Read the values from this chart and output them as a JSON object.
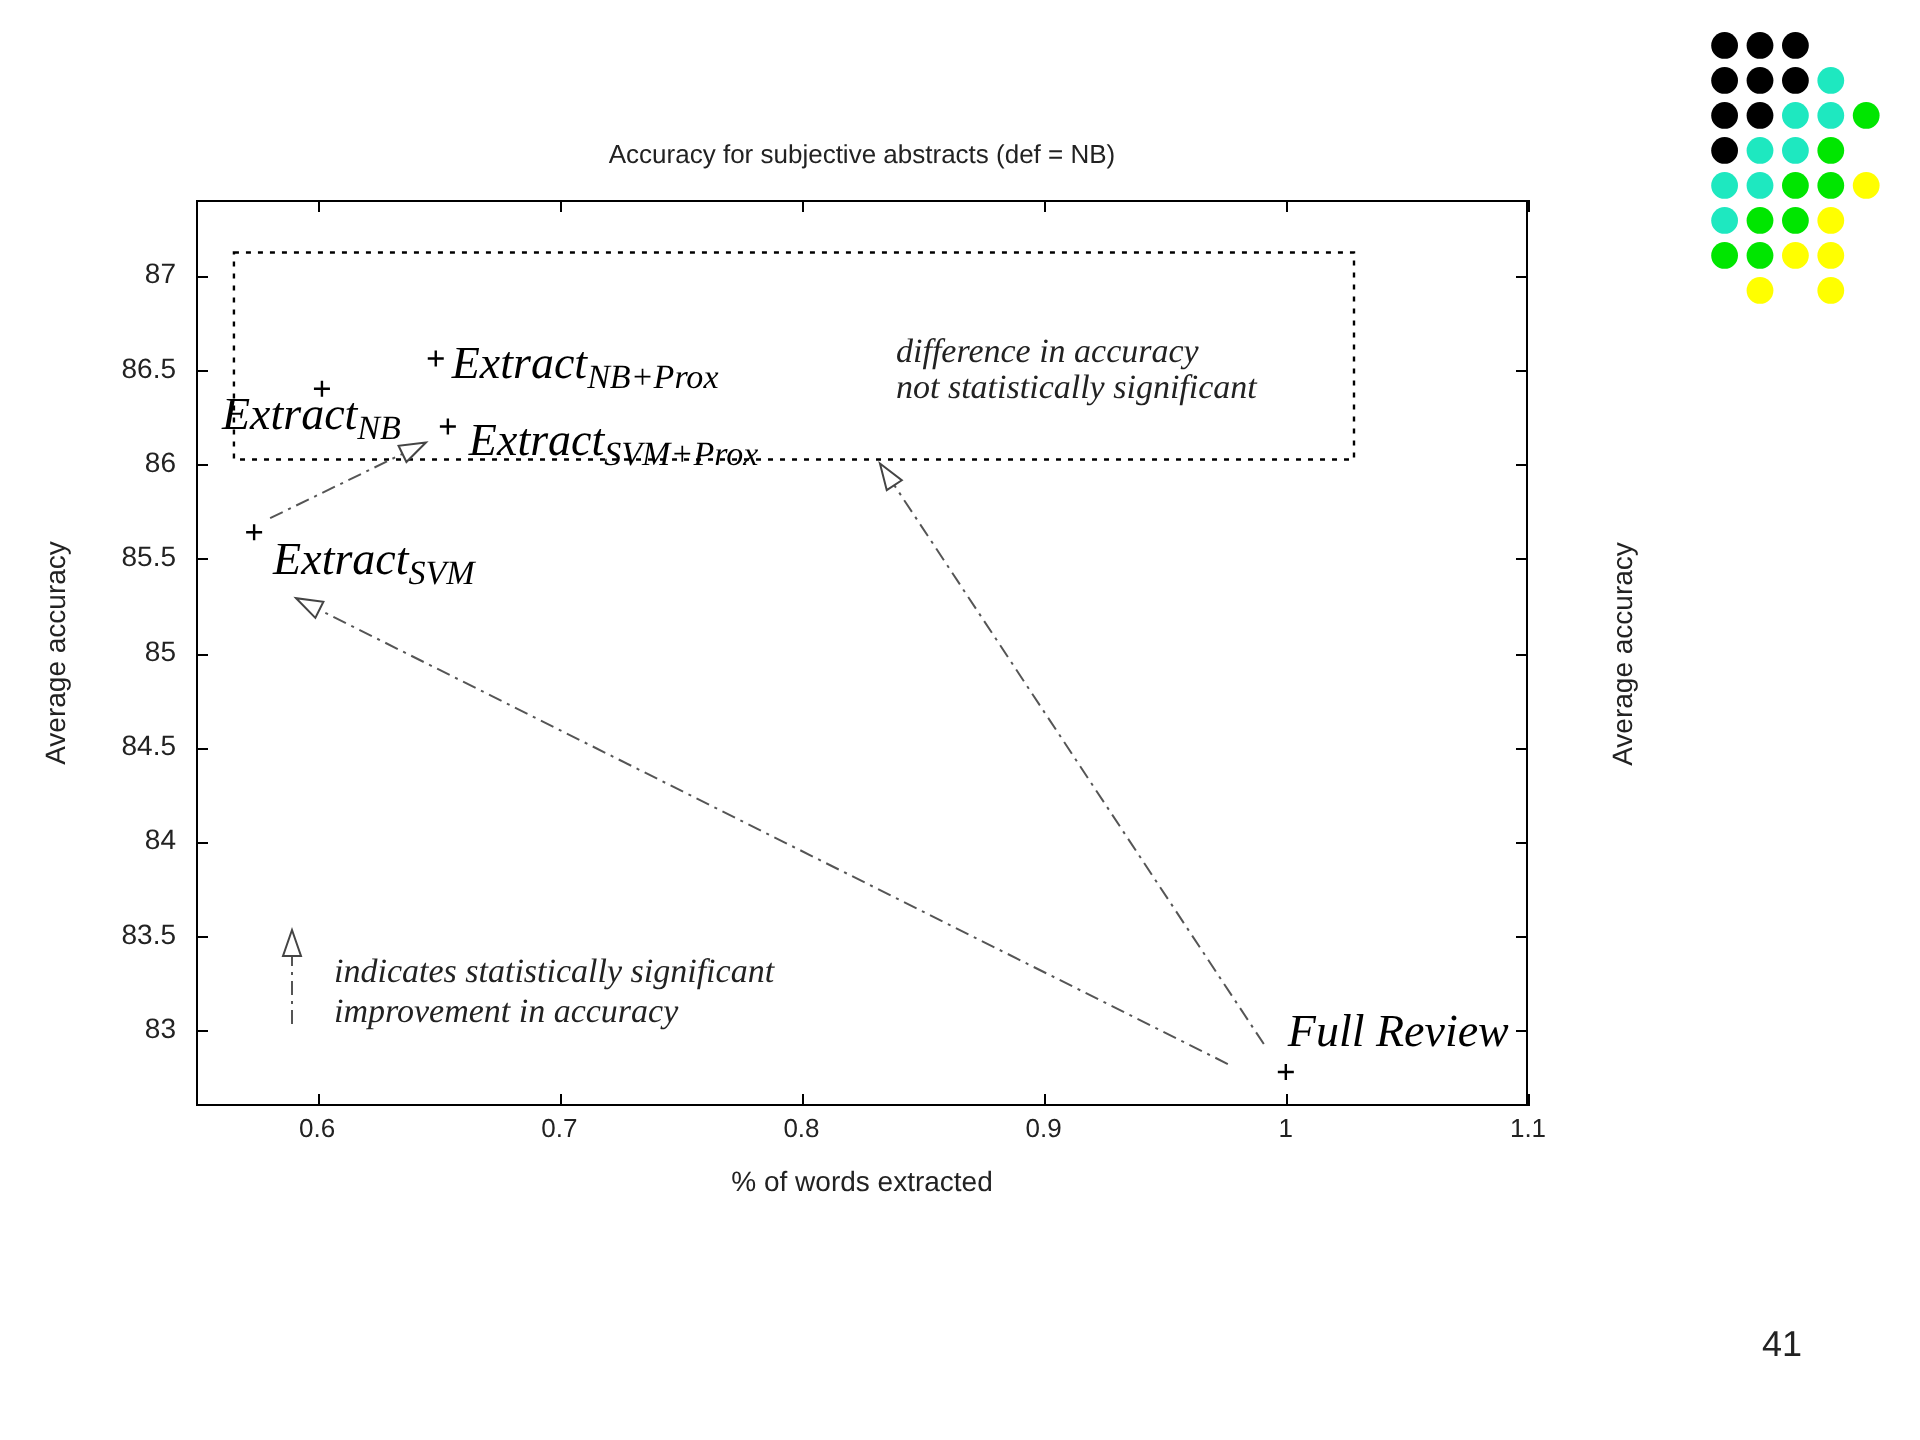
{
  "chart_data": {
    "type": "scatter",
    "title": "Accuracy for subjective abstracts (def = NB)",
    "xlabel": "% of words extracted",
    "ylabel": "Average accuracy",
    "series": [
      {
        "name": "Extract$_{NB}$",
        "color": "#000000",
        "x": [
          0.602
        ],
        "values": [
          86.4
        ]
      },
      {
        "name": "Extract$_{NB+Prox}$",
        "color": "#000000",
        "x": [
          0.649
        ],
        "values": [
          86.56
        ]
      },
      {
        "name": "Extract$_{SVM+Prox}$",
        "color": "#000000",
        "x": [
          0.654
        ],
        "values": [
          86.2
        ]
      },
      {
        "name": "Extract$_{SVM}$",
        "color": "#000000",
        "x": [
          0.574
        ],
        "values": [
          85.64
        ]
      },
      {
        "name": "Full Review",
        "color": "#000000",
        "x": [
          1.0
        ],
        "values": [
          82.78
        ]
      }
    ],
    "xlim": [
      0.55,
      1.1
    ],
    "xticks": [
      0.6,
      0.7,
      0.8,
      0.9,
      1,
      1.1
    ],
    "ylim": [
      82.6,
      87.4
    ],
    "yticks": [
      83,
      83.5,
      84,
      84.5,
      85,
      85.5,
      86,
      86.5,
      87
    ],
    "marker": "cross",
    "annotations": [
      "difference in accuracy\nnot statistically significant",
      "indicates statistically significant\nimprovement in accuracy",
      "Average accuracy",
      "41"
    ]
  }
}
